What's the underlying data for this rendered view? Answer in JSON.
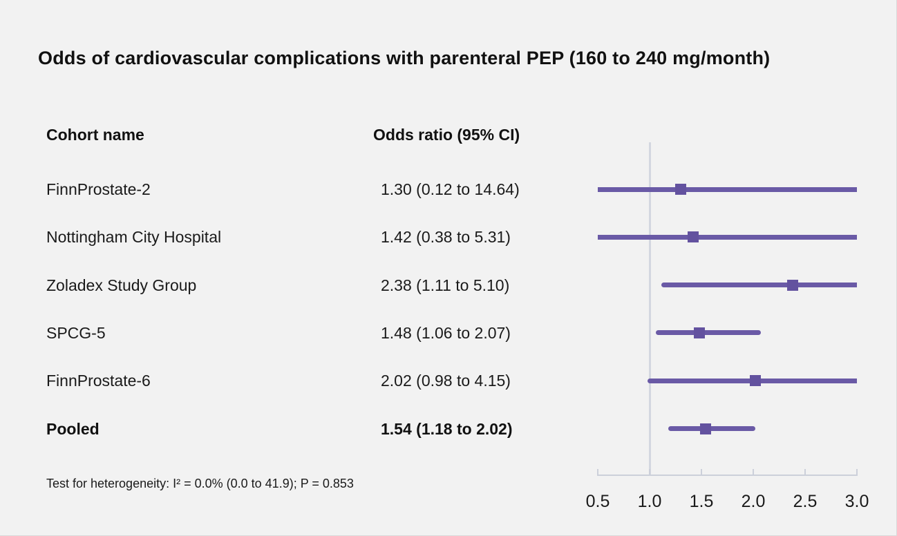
{
  "title": "Odds of cardiovascular complications with parenteral PEP (160 to 240 mg/month)",
  "table": {
    "col1_header": "Cohort name",
    "col2_header": "Odds ratio (95% CI)"
  },
  "footnote": "Test for heterogeneity: I² = 0.0% (0.0 to 41.9); P = 0.853",
  "colors": {
    "background": "#f2f2f2",
    "text": "#1a1a1a",
    "ci_line": "#6a5aa6",
    "marker": "#63529f",
    "axis": "#ccd0da",
    "reference_line": "#d3d7e0"
  },
  "chart_data": {
    "type": "forest",
    "title": "Odds of cardiovascular complications with parenteral PEP (160 to 240 mg/month)",
    "xlabel": "Odds ratio",
    "axis": {
      "scale": "linear",
      "min": 0.5,
      "max": 3.0,
      "reference": 1.0,
      "ticks": [
        "0.5",
        "1.0",
        "1.5",
        "2.0",
        "2.5",
        "3.0"
      ]
    },
    "rows": [
      {
        "label": "FinnProstate-2",
        "display": "1.30 (0.12 to 14.64)",
        "or": 1.3,
        "ci_low": 0.12,
        "ci_high": 14.64,
        "bold": false
      },
      {
        "label": "Nottingham City Hospital",
        "display": "1.42 (0.38 to 5.31)",
        "or": 1.42,
        "ci_low": 0.38,
        "ci_high": 5.31,
        "bold": false
      },
      {
        "label": "Zoladex Study Group",
        "display": "2.38 (1.11 to 5.10)",
        "or": 2.38,
        "ci_low": 1.11,
        "ci_high": 5.1,
        "bold": false
      },
      {
        "label": "SPCG-5",
        "display": "1.48 (1.06 to 2.07)",
        "or": 1.48,
        "ci_low": 1.06,
        "ci_high": 2.07,
        "bold": false
      },
      {
        "label": "FinnProstate-6",
        "display": "2.02 (0.98 to 4.15)",
        "or": 2.02,
        "ci_low": 0.98,
        "ci_high": 4.15,
        "bold": false
      },
      {
        "label": "Pooled",
        "display": "1.54 (1.18 to 2.02)",
        "or": 1.54,
        "ci_low": 1.18,
        "ci_high": 2.02,
        "bold": true
      }
    ],
    "heterogeneity": "Test for heterogeneity: I² = 0.0% (0.0 to 41.9); P = 0.853"
  }
}
